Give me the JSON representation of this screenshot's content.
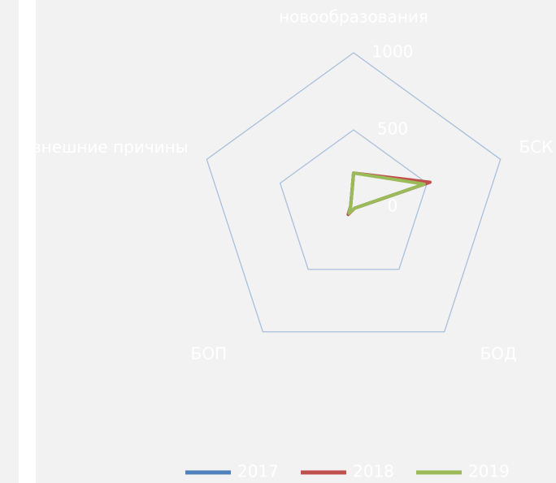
{
  "chart_data": {
    "type": "radar",
    "categories": [
      "новообразования",
      "БСК",
      "БОД",
      "БОП",
      "внешние причины"
    ],
    "series": [
      {
        "name": "2017",
        "color": "#4f81bd",
        "values": [
          220,
          510,
          10,
          55,
          20
        ]
      },
      {
        "name": "2018",
        "color": "#c0504d",
        "values": [
          220,
          520,
          10,
          60,
          20
        ]
      },
      {
        "name": "2019",
        "color": "#9bbb59",
        "values": [
          220,
          480,
          10,
          50,
          20
        ]
      }
    ],
    "ylim": [
      0,
      1000
    ],
    "yticks": [
      0,
      500,
      1000
    ],
    "grid": true,
    "grid_color": "#a9bfdc",
    "legend": "bottom"
  }
}
